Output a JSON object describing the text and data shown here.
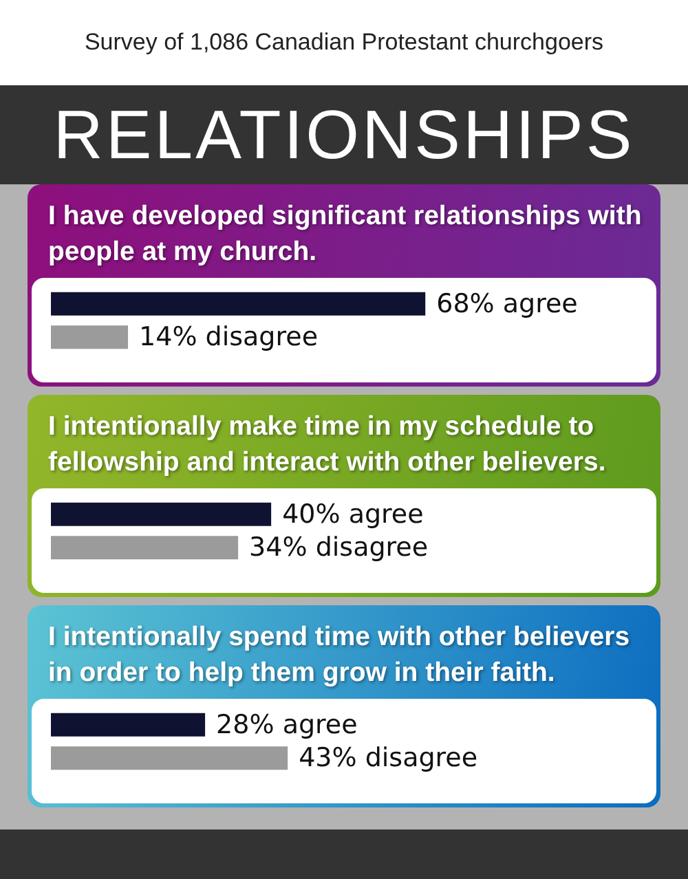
{
  "chart_data": [
    {
      "type": "other",
      "title": "RELATIONSHIPS",
      "subtitle": "Survey of 1,086 Canadian Protestant churchgoers"
    },
    {
      "type": "bar",
      "orientation": "horizontal",
      "title": "I have developed significant relationships with people at my church.",
      "categories": [
        null,
        null
      ],
      "values": [
        68,
        14
      ],
      "colors": [
        "#0f1230",
        "#9b9b9b"
      ],
      "value_labels": [
        "68% agree",
        "14% disagree"
      ],
      "tick_labels": false
    },
    {
      "type": "bar",
      "orientation": "horizontal",
      "title": "I intentionally make time in my schedule to fellowship and interact with other believers.",
      "categories": [
        null,
        null
      ],
      "values": [
        40,
        34
      ],
      "colors": [
        "#0f1230",
        "#9b9b9b"
      ],
      "value_labels": [
        "40% agree",
        "34% disagree"
      ],
      "tick_labels": false
    },
    {
      "type": "bar",
      "orientation": "horizontal",
      "title": "I intentionally spend time with other believers in order to help them grow in their faith.",
      "categories": [
        null,
        null
      ],
      "values": [
        28,
        43
      ],
      "colors": [
        "#0f1230",
        "#9b9b9b"
      ],
      "value_labels": [
        "28% agree",
        "43% disagree"
      ],
      "tick_labels": false
    }
  ]
}
